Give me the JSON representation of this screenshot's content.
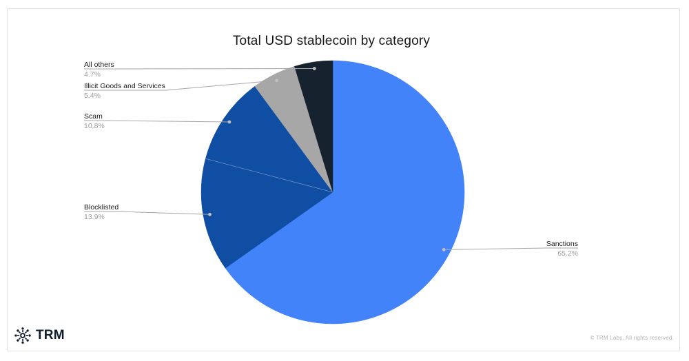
{
  "chart_data": {
    "type": "pie",
    "title": "Total USD stablecoin by category",
    "start": "top",
    "direction": "clockwise",
    "legend_position": "none",
    "slices": [
      {
        "label": "Sanctions",
        "value": 65.2,
        "pct_label": "65.2%",
        "color": "#4383fa"
      },
      {
        "label": "Blocklisted",
        "value": 13.9,
        "pct_label": "13.9%",
        "color": "#0f4ea3"
      },
      {
        "label": "Scam",
        "value": 10.8,
        "pct_label": "10.8%",
        "color": "#0f4ea3"
      },
      {
        "label": "Illicit Goods and Services",
        "value": 5.4,
        "pct_label": "5.4%",
        "color": "#a7a7a7"
      },
      {
        "label": "All others",
        "value": 4.7,
        "pct_label": "4.7%",
        "color": "#16222e"
      }
    ]
  },
  "branding": {
    "logo_text": "TRM",
    "brand_color": "#0e1c2c"
  },
  "footer": {
    "copyright": "© TRM Labs. All rights reserved."
  }
}
